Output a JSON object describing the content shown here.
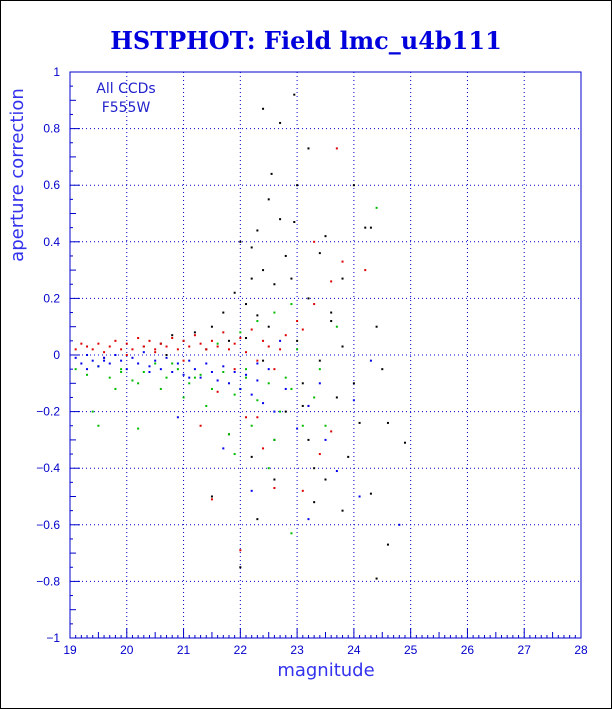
{
  "chart_data": {
    "type": "scatter",
    "title": "HSTPHOT: Field lmc_u4b111",
    "xlabel": "magnitude",
    "ylabel": "aperture correction",
    "xlim": [
      19,
      28
    ],
    "ylim": [
      -1,
      1
    ],
    "x_ticks": [
      "19",
      "20",
      "21",
      "22",
      "23",
      "24",
      "25",
      "26",
      "27",
      "28"
    ],
    "y_ticks": [
      "1",
      "0.8",
      "0.6",
      "0.4",
      "0.2",
      "0",
      "−0.2",
      "−0.4",
      "−0.6",
      "−0.8",
      "−1"
    ],
    "grid": true,
    "annotations": [
      "All CCDs",
      "F555W"
    ],
    "series": [
      {
        "color": "#000000",
        "points": [
          [
            22.4,
            0.87
          ],
          [
            22.95,
            0.92
          ],
          [
            22.7,
            0.82
          ],
          [
            23.2,
            0.73
          ],
          [
            22.55,
            0.64
          ],
          [
            23.0,
            0.6
          ],
          [
            22.5,
            0.55
          ],
          [
            22.95,
            0.47
          ],
          [
            22.7,
            0.48
          ],
          [
            22.2,
            0.38
          ],
          [
            22.3,
            0.44
          ],
          [
            22.8,
            0.35
          ],
          [
            22.4,
            0.3
          ],
          [
            22.0,
            0.4
          ],
          [
            22.2,
            0.27
          ],
          [
            21.9,
            0.22
          ],
          [
            22.1,
            0.18
          ],
          [
            22.6,
            0.25
          ],
          [
            21.7,
            0.15
          ],
          [
            22.3,
            0.14
          ],
          [
            23.4,
            0.36
          ],
          [
            23.5,
            0.42
          ],
          [
            24.2,
            0.45
          ],
          [
            23.8,
            0.27
          ],
          [
            24.4,
            0.1
          ],
          [
            23.6,
            0.12
          ],
          [
            23.2,
            0.2
          ],
          [
            22.9,
            0.27
          ],
          [
            21.5,
            0.1
          ],
          [
            21.2,
            0.08
          ],
          [
            20.8,
            0.07
          ],
          [
            21.8,
            0.05
          ],
          [
            22.5,
            0.1
          ],
          [
            23.8,
            0.03
          ],
          [
            24.5,
            -0.05
          ],
          [
            23.1,
            -0.1
          ],
          [
            23.7,
            -0.15
          ],
          [
            24.1,
            -0.24
          ],
          [
            23.2,
            -0.3
          ],
          [
            23.9,
            -0.36
          ],
          [
            23.5,
            -0.44
          ],
          [
            24.3,
            -0.49
          ],
          [
            23.3,
            -0.52
          ],
          [
            23.8,
            -0.55
          ],
          [
            22.3,
            -0.58
          ],
          [
            21.5,
            -0.5
          ],
          [
            22.6,
            -0.44
          ],
          [
            24.9,
            -0.31
          ],
          [
            24.6,
            -0.67
          ],
          [
            24.4,
            -0.79
          ],
          [
            22.0,
            -0.75
          ],
          [
            22.8,
            -0.2
          ],
          [
            22.6,
            -0.3
          ],
          [
            21.8,
            -0.28
          ],
          [
            22.2,
            -0.36
          ],
          [
            20.6,
            0.04
          ],
          [
            20.3,
            0.03
          ],
          [
            21.0,
            0.05
          ],
          [
            23.3,
            -0.4
          ],
          [
            24.0,
            -0.1
          ],
          [
            24.0,
            0.6
          ],
          [
            24.3,
            0.45
          ],
          [
            23.6,
            0.15
          ],
          [
            22.1,
            0.06
          ],
          [
            21.4,
            0.02
          ],
          [
            20.7,
            0.0
          ],
          [
            22.4,
            -0.02
          ],
          [
            23.0,
            0.05
          ],
          [
            23.4,
            -0.02
          ],
          [
            23.1,
            -0.18
          ],
          [
            24.6,
            -0.24
          ]
        ]
      },
      {
        "color": "#dd0000",
        "points": [
          [
            19.1,
            0.02
          ],
          [
            19.2,
            0.04
          ],
          [
            19.3,
            0.03
          ],
          [
            19.4,
            0.02
          ],
          [
            19.5,
            0.04
          ],
          [
            19.6,
            0.01
          ],
          [
            19.7,
            0.03
          ],
          [
            19.8,
            0.05
          ],
          [
            19.9,
            0.02
          ],
          [
            20.0,
            0.04
          ],
          [
            20.1,
            0.02
          ],
          [
            20.2,
            0.06
          ],
          [
            20.3,
            0.03
          ],
          [
            20.4,
            0.05
          ],
          [
            20.5,
            0.01
          ],
          [
            20.6,
            0.04
          ],
          [
            20.7,
            0.03
          ],
          [
            20.8,
            0.06
          ],
          [
            20.9,
            0.02
          ],
          [
            21.0,
            0.05
          ],
          [
            21.1,
            0.03
          ],
          [
            21.2,
            0.07
          ],
          [
            21.3,
            0.04
          ],
          [
            21.4,
            0.02
          ],
          [
            21.5,
            0.05
          ],
          [
            21.6,
            0.03
          ],
          [
            21.7,
            0.08
          ],
          [
            21.8,
            0.02
          ],
          [
            21.9,
            0.04
          ],
          [
            22.0,
            0.06
          ],
          [
            22.1,
            0.01
          ],
          [
            22.2,
            0.09
          ],
          [
            22.3,
            -0.02
          ],
          [
            22.4,
            0.05
          ],
          [
            22.5,
            0.03
          ],
          [
            22.6,
            -0.05
          ],
          [
            22.8,
            0.07
          ],
          [
            23.0,
            0.12
          ],
          [
            23.3,
            0.18
          ],
          [
            23.6,
            0.26
          ],
          [
            23.8,
            0.33
          ],
          [
            23.7,
            0.73
          ],
          [
            23.2,
            -0.18
          ],
          [
            23.6,
            -0.27
          ],
          [
            23.4,
            -0.35
          ],
          [
            22.4,
            -0.33
          ],
          [
            22.1,
            -0.22
          ],
          [
            21.3,
            -0.25
          ],
          [
            21.6,
            -0.13
          ],
          [
            22.0,
            -0.69
          ],
          [
            21.5,
            -0.51
          ],
          [
            22.6,
            -0.47
          ],
          [
            23.1,
            -0.48
          ],
          [
            22.3,
            -0.22
          ],
          [
            19.6,
            -0.01
          ],
          [
            20.0,
            0.0
          ],
          [
            20.5,
            0.02
          ],
          [
            21.0,
            -0.02
          ],
          [
            21.9,
            -0.05
          ],
          [
            22.7,
            0.02
          ],
          [
            23.1,
            0.09
          ],
          [
            23.3,
            0.4
          ],
          [
            24.2,
            0.3
          ]
        ]
      },
      {
        "color": "#00bb00",
        "points": [
          [
            19.1,
            -0.05
          ],
          [
            19.3,
            -0.07
          ],
          [
            19.5,
            -0.04
          ],
          [
            19.7,
            -0.08
          ],
          [
            19.9,
            -0.05
          ],
          [
            20.1,
            -0.09
          ],
          [
            20.3,
            -0.06
          ],
          [
            20.5,
            -0.03
          ],
          [
            20.7,
            -0.08
          ],
          [
            20.9,
            -0.05
          ],
          [
            21.1,
            -0.1
          ],
          [
            21.3,
            -0.07
          ],
          [
            21.5,
            -0.12
          ],
          [
            21.7,
            -0.06
          ],
          [
            21.9,
            -0.14
          ],
          [
            22.1,
            -0.08
          ],
          [
            22.3,
            -0.16
          ],
          [
            22.5,
            -0.1
          ],
          [
            22.7,
            -0.2
          ],
          [
            22.9,
            -0.12
          ],
          [
            23.1,
            -0.25
          ],
          [
            23.3,
            -0.15
          ],
          [
            22.6,
            -0.3
          ],
          [
            22.2,
            -0.25
          ],
          [
            21.8,
            -0.28
          ],
          [
            21.4,
            -0.18
          ],
          [
            21.0,
            -0.15
          ],
          [
            20.6,
            -0.12
          ],
          [
            20.2,
            -0.1
          ],
          [
            19.8,
            -0.12
          ],
          [
            19.4,
            -0.2
          ],
          [
            19.5,
            -0.25
          ],
          [
            20.2,
            -0.26
          ],
          [
            21.6,
            0.04
          ],
          [
            22.0,
            0.08
          ],
          [
            22.3,
            0.12
          ],
          [
            22.6,
            0.15
          ],
          [
            22.9,
            0.18
          ],
          [
            23.4,
            -0.05
          ],
          [
            23.7,
            0.1
          ],
          [
            24.4,
            0.52
          ],
          [
            22.9,
            -0.63
          ],
          [
            22.5,
            -0.4
          ],
          [
            21.9,
            -0.35
          ],
          [
            23.0,
            0.02
          ],
          [
            22.1,
            -0.05
          ],
          [
            21.2,
            -0.08
          ],
          [
            20.8,
            -0.03
          ],
          [
            19.9,
            -0.06
          ],
          [
            22.8,
            -0.08
          ],
          [
            23.5,
            -0.25
          ],
          [
            22.0,
            -0.12
          ]
        ]
      },
      {
        "color": "#0000ee",
        "points": [
          [
            19.1,
            -0.01
          ],
          [
            19.2,
            -0.03
          ],
          [
            19.3,
            0.0
          ],
          [
            19.4,
            -0.02
          ],
          [
            19.5,
            -0.04
          ],
          [
            19.6,
            -0.01
          ],
          [
            19.7,
            -0.03
          ],
          [
            19.8,
            0.0
          ],
          [
            19.9,
            -0.02
          ],
          [
            20.0,
            -0.05
          ],
          [
            20.1,
            -0.01
          ],
          [
            20.2,
            -0.03
          ],
          [
            20.3,
            0.01
          ],
          [
            20.4,
            -0.04
          ],
          [
            20.5,
            -0.02
          ],
          [
            20.6,
            -0.05
          ],
          [
            20.7,
            -0.01
          ],
          [
            20.8,
            -0.06
          ],
          [
            20.9,
            -0.03
          ],
          [
            21.0,
            -0.07
          ],
          [
            21.1,
            -0.02
          ],
          [
            21.2,
            -0.05
          ],
          [
            21.3,
            -0.08
          ],
          [
            21.4,
            -0.03
          ],
          [
            21.5,
            -0.06
          ],
          [
            21.6,
            -0.09
          ],
          [
            21.7,
            -0.04
          ],
          [
            21.8,
            -0.1
          ],
          [
            21.9,
            -0.06
          ],
          [
            22.0,
            -0.12
          ],
          [
            22.1,
            -0.07
          ],
          [
            22.2,
            -0.14
          ],
          [
            22.3,
            -0.09
          ],
          [
            22.4,
            -0.17
          ],
          [
            22.5,
            -0.05
          ],
          [
            22.6,
            -0.2
          ],
          [
            22.8,
            -0.12
          ],
          [
            23.0,
            -0.26
          ],
          [
            23.2,
            -0.18
          ],
          [
            23.5,
            -0.3
          ],
          [
            23.2,
            -0.58
          ],
          [
            24.1,
            -0.5
          ],
          [
            24.0,
            -0.16
          ],
          [
            24.3,
            -0.02
          ],
          [
            24.8,
            -0.6
          ],
          [
            22.2,
            -0.48
          ],
          [
            21.7,
            -0.33
          ],
          [
            20.9,
            -0.22
          ],
          [
            23.7,
            -0.41
          ],
          [
            22.7,
            0.05
          ],
          [
            19.3,
            -0.05
          ],
          [
            19.6,
            -0.02
          ],
          [
            20.4,
            -0.06
          ],
          [
            21.1,
            -0.08
          ],
          [
            22.3,
            -0.03
          ],
          [
            23.4,
            -0.1
          ]
        ]
      }
    ]
  }
}
